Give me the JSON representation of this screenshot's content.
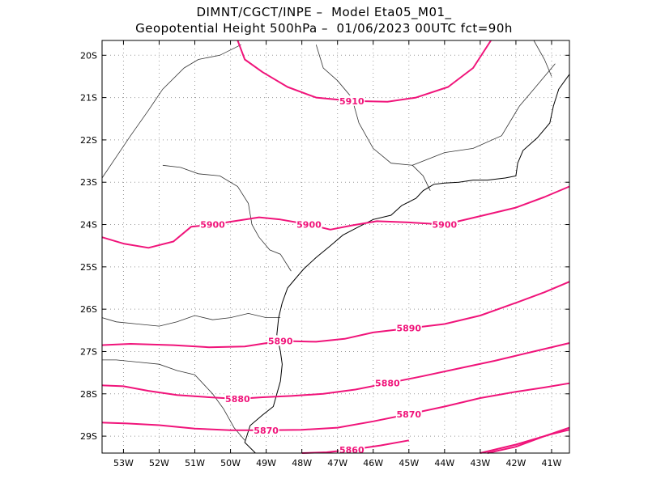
{
  "header": {
    "line1": "DIMNT/CGCT/INPE –  Model Eta05_M01_",
    "line2": "Geopotential Height 500hPa –  01/06/2023 00UTC fct=90h"
  },
  "colors": {
    "contour": "#f0147a",
    "coast": "#000000",
    "border": "#333333",
    "grid": "#999999"
  },
  "map": {
    "lon_range": [
      -53.6,
      -40.5
    ],
    "lat_range": [
      -29.4,
      -19.65
    ],
    "lon_ticks": [
      {
        "value": -53,
        "label": "53W"
      },
      {
        "value": -52,
        "label": "52W"
      },
      {
        "value": -51,
        "label": "51W"
      },
      {
        "value": -50,
        "label": "50W"
      },
      {
        "value": -49,
        "label": "49W"
      },
      {
        "value": -48,
        "label": "48W"
      },
      {
        "value": -47,
        "label": "47W"
      },
      {
        "value": -46,
        "label": "46W"
      },
      {
        "value": -45,
        "label": "45W"
      },
      {
        "value": -44,
        "label": "44W"
      },
      {
        "value": -43,
        "label": "43W"
      },
      {
        "value": -42,
        "label": "42W"
      },
      {
        "value": -41,
        "label": "41W"
      }
    ],
    "lat_ticks": [
      {
        "value": -20,
        "label": "20S"
      },
      {
        "value": -21,
        "label": "21S"
      },
      {
        "value": -22,
        "label": "22S"
      },
      {
        "value": -23,
        "label": "23S"
      },
      {
        "value": -24,
        "label": "24S"
      },
      {
        "value": -25,
        "label": "25S"
      },
      {
        "value": -26,
        "label": "26S"
      },
      {
        "value": -27,
        "label": "27S"
      },
      {
        "value": -28,
        "label": "28S"
      },
      {
        "value": -29,
        "label": "29S"
      }
    ],
    "grid": true,
    "contours": [
      {
        "level": 5910,
        "labels": [
          "5910"
        ],
        "points": [
          [
            -49.8,
            -19.65
          ],
          [
            -49.6,
            -20.1
          ],
          [
            -49.1,
            -20.4
          ],
          [
            -48.4,
            -20.75
          ],
          [
            -47.6,
            -21.0
          ],
          [
            -46.6,
            -21.08
          ],
          [
            -45.6,
            -21.1
          ],
          [
            -44.8,
            -21.0
          ],
          [
            -43.9,
            -20.75
          ],
          [
            -43.2,
            -20.3
          ],
          [
            -42.7,
            -19.65
          ]
        ]
      },
      {
        "level": 5900,
        "labels": [
          "5900",
          "5900",
          "5900"
        ],
        "points": [
          [
            -53.6,
            -24.3
          ],
          [
            -53.0,
            -24.45
          ],
          [
            -52.3,
            -24.55
          ],
          [
            -51.6,
            -24.4
          ],
          [
            -51.1,
            -24.05
          ],
          [
            -50.5,
            -24.0
          ],
          [
            -49.9,
            -23.92
          ],
          [
            -49.2,
            -23.83
          ],
          [
            -48.6,
            -23.88
          ],
          [
            -47.8,
            -24.0
          ],
          [
            -47.2,
            -24.12
          ],
          [
            -46.6,
            -24.02
          ],
          [
            -45.9,
            -23.92
          ],
          [
            -45.0,
            -23.95
          ],
          [
            -44.0,
            -24.0
          ],
          [
            -43.0,
            -23.8
          ],
          [
            -42.0,
            -23.6
          ],
          [
            -41.2,
            -23.35
          ],
          [
            -40.5,
            -23.1
          ]
        ]
      },
      {
        "level": 5890,
        "labels": [
          "5890",
          "5890"
        ],
        "points": [
          [
            -53.6,
            -26.85
          ],
          [
            -52.8,
            -26.82
          ],
          [
            -51.6,
            -26.85
          ],
          [
            -50.6,
            -26.9
          ],
          [
            -49.6,
            -26.88
          ],
          [
            -48.6,
            -26.75
          ],
          [
            -47.6,
            -26.77
          ],
          [
            -46.8,
            -26.7
          ],
          [
            -46.0,
            -26.55
          ],
          [
            -45.0,
            -26.45
          ],
          [
            -44.0,
            -26.35
          ],
          [
            -43.0,
            -26.15
          ],
          [
            -42.0,
            -25.85
          ],
          [
            -41.2,
            -25.6
          ],
          [
            -40.5,
            -25.35
          ]
        ]
      },
      {
        "level": 5880,
        "labels": [
          "5880",
          "5880"
        ],
        "points": [
          [
            -53.6,
            -27.8
          ],
          [
            -53.0,
            -27.82
          ],
          [
            -52.3,
            -27.93
          ],
          [
            -51.5,
            -28.03
          ],
          [
            -50.6,
            -28.08
          ],
          [
            -49.8,
            -28.12
          ],
          [
            -49.1,
            -28.08
          ],
          [
            -48.3,
            -28.05
          ],
          [
            -47.4,
            -28.0
          ],
          [
            -46.5,
            -27.9
          ],
          [
            -45.6,
            -27.75
          ],
          [
            -44.6,
            -27.58
          ],
          [
            -43.6,
            -27.4
          ],
          [
            -42.6,
            -27.22
          ],
          [
            -41.6,
            -27.02
          ],
          [
            -40.5,
            -26.8
          ]
        ]
      },
      {
        "level": 5870,
        "labels": [
          "5870",
          "5870"
        ],
        "points": [
          [
            -53.6,
            -28.68
          ],
          [
            -52.9,
            -28.7
          ],
          [
            -52.0,
            -28.74
          ],
          [
            -51.0,
            -28.82
          ],
          [
            -50.0,
            -28.86
          ],
          [
            -49.0,
            -28.86
          ],
          [
            -48.0,
            -28.85
          ],
          [
            -47.0,
            -28.8
          ],
          [
            -46.0,
            -28.65
          ],
          [
            -45.0,
            -28.48
          ],
          [
            -44.0,
            -28.3
          ],
          [
            -43.0,
            -28.1
          ],
          [
            -42.0,
            -27.95
          ],
          [
            -41.2,
            -27.85
          ],
          [
            -40.5,
            -27.75
          ]
        ]
      },
      {
        "level": 5860,
        "labels": [
          "5860"
        ],
        "points": [
          [
            -48.0,
            -29.4
          ],
          [
            -47.3,
            -29.38
          ],
          [
            -46.6,
            -29.32
          ],
          [
            -45.8,
            -29.22
          ],
          [
            -45.0,
            -29.1
          ]
        ]
      },
      {
        "level": 5860,
        "labels": [],
        "points": [
          [
            -42.8,
            -29.4
          ],
          [
            -42.0,
            -29.25
          ],
          [
            -41.2,
            -29.0
          ],
          [
            -40.5,
            -28.8
          ]
        ]
      },
      {
        "level": 5860,
        "labels": [],
        "points": [
          [
            -43.0,
            -29.4
          ],
          [
            -42.0,
            -29.2
          ],
          [
            -41.0,
            -28.95
          ],
          [
            -40.5,
            -28.85
          ]
        ]
      }
    ],
    "coastline": [
      [
        -49.3,
        -29.4
      ],
      [
        -49.6,
        -29.15
      ],
      [
        -49.45,
        -28.75
      ],
      [
        -49.1,
        -28.5
      ],
      [
        -48.8,
        -28.3
      ],
      [
        -48.7,
        -28.0
      ],
      [
        -48.6,
        -27.7
      ],
      [
        -48.55,
        -27.3
      ],
      [
        -48.6,
        -27.0
      ],
      [
        -48.7,
        -26.6
      ],
      [
        -48.65,
        -26.2
      ],
      [
        -48.55,
        -25.85
      ],
      [
        -48.4,
        -25.5
      ],
      [
        -48.2,
        -25.3
      ],
      [
        -47.95,
        -25.05
      ],
      [
        -47.6,
        -24.78
      ],
      [
        -47.2,
        -24.5
      ],
      [
        -46.85,
        -24.25
      ],
      [
        -46.4,
        -24.05
      ],
      [
        -46.0,
        -23.88
      ],
      [
        -45.5,
        -23.78
      ],
      [
        -45.2,
        -23.55
      ],
      [
        -44.8,
        -23.38
      ],
      [
        -44.6,
        -23.2
      ],
      [
        -44.3,
        -23.05
      ],
      [
        -44.0,
        -23.02
      ],
      [
        -43.6,
        -23.0
      ],
      [
        -43.2,
        -22.95
      ],
      [
        -42.8,
        -22.95
      ],
      [
        -42.3,
        -22.9
      ],
      [
        -42.0,
        -22.85
      ],
      [
        -41.95,
        -22.55
      ],
      [
        -41.8,
        -22.25
      ],
      [
        -41.4,
        -21.95
      ],
      [
        -41.05,
        -21.6
      ],
      [
        -40.95,
        -21.2
      ],
      [
        -40.8,
        -20.8
      ],
      [
        -40.5,
        -20.45
      ]
    ],
    "borders": [
      [
        [
          -53.6,
          -26.2
        ],
        [
          -53.2,
          -26.3
        ],
        [
          -52.6,
          -26.35
        ],
        [
          -52.0,
          -26.4
        ],
        [
          -51.5,
          -26.3
        ],
        [
          -51.0,
          -26.15
        ],
        [
          -50.5,
          -26.25
        ],
        [
          -50.0,
          -26.2
        ],
        [
          -49.5,
          -26.1
        ],
        [
          -49.0,
          -26.2
        ],
        [
          -48.6,
          -26.2
        ]
      ],
      [
        [
          -53.6,
          -27.2
        ],
        [
          -53.2,
          -27.2
        ],
        [
          -52.6,
          -27.25
        ],
        [
          -52.0,
          -27.3
        ],
        [
          -51.5,
          -27.45
        ],
        [
          -51.0,
          -27.55
        ],
        [
          -50.5,
          -28.0
        ],
        [
          -50.2,
          -28.35
        ],
        [
          -49.9,
          -28.8
        ],
        [
          -49.6,
          -29.1
        ]
      ],
      [
        [
          -53.6,
          -22.9
        ],
        [
          -53.2,
          -22.4
        ],
        [
          -52.8,
          -21.9
        ],
        [
          -52.3,
          -21.3
        ],
        [
          -51.9,
          -20.8
        ],
        [
          -51.3,
          -20.3
        ],
        [
          -50.9,
          -20.1
        ],
        [
          -50.3,
          -20.0
        ],
        [
          -49.7,
          -19.75
        ]
      ],
      [
        [
          -51.9,
          -22.6
        ],
        [
          -51.4,
          -22.65
        ],
        [
          -50.9,
          -22.8
        ],
        [
          -50.3,
          -22.85
        ],
        [
          -49.8,
          -23.1
        ],
        [
          -49.5,
          -23.5
        ],
        [
          -49.4,
          -24.0
        ],
        [
          -49.2,
          -24.3
        ],
        [
          -48.9,
          -24.6
        ],
        [
          -48.6,
          -24.7
        ],
        [
          -48.3,
          -25.1
        ]
      ],
      [
        [
          -47.6,
          -19.75
        ],
        [
          -47.4,
          -20.3
        ],
        [
          -47.0,
          -20.6
        ],
        [
          -46.6,
          -21.0
        ],
        [
          -46.4,
          -21.6
        ],
        [
          -46.0,
          -22.2
        ],
        [
          -45.5,
          -22.55
        ],
        [
          -44.9,
          -22.6
        ],
        [
          -44.6,
          -22.85
        ],
        [
          -44.4,
          -23.2
        ]
      ],
      [
        [
          -44.9,
          -22.6
        ],
        [
          -44.0,
          -22.3
        ],
        [
          -43.2,
          -22.2
        ],
        [
          -42.4,
          -21.9
        ],
        [
          -41.9,
          -21.2
        ],
        [
          -41.5,
          -20.8
        ],
        [
          -41.2,
          -20.5
        ],
        [
          -40.9,
          -20.2
        ]
      ],
      [
        [
          -41.5,
          -19.65
        ],
        [
          -41.2,
          -20.1
        ],
        [
          -41.0,
          -20.5
        ]
      ]
    ]
  }
}
